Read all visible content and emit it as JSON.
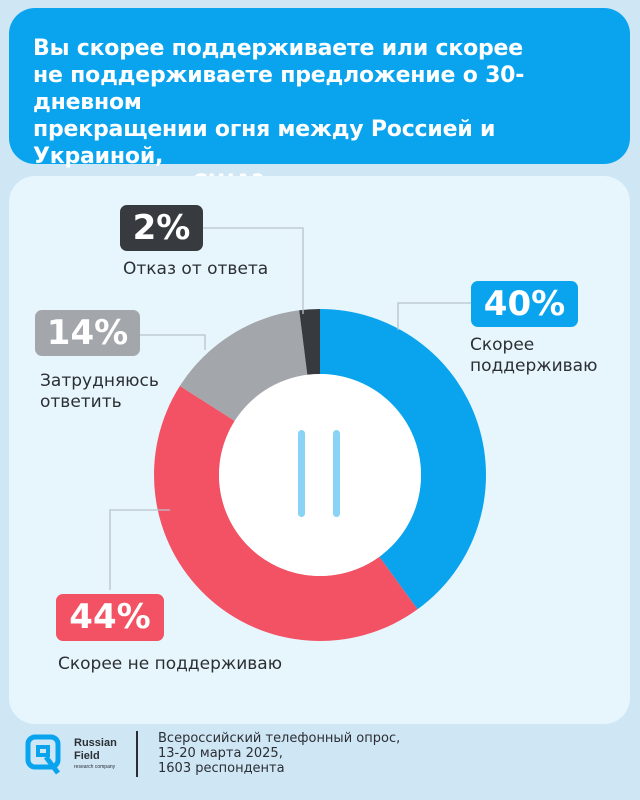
{
  "header": {
    "title_lines": [
      "Вы скорее поддерживаете или скорее",
      "не поддерживаете предложение о 30-дневном",
      "прекращении огня между Россией и Украиной,",
      "выдвинутое США?"
    ]
  },
  "chart_data": {
    "type": "pie",
    "slices": [
      {
        "label": "Скорее поддерживаю",
        "value": 40,
        "value_label": "40%",
        "color": "#0aa4ee"
      },
      {
        "label": "Скорее не поддерживаю",
        "value": 44,
        "value_label": "44%",
        "color": "#f25263"
      },
      {
        "label": "Затрудняюсь ответить",
        "value": 14,
        "value_label": "14%",
        "color": "#a3a6ab"
      },
      {
        "label": "Отказ от ответа",
        "value": 2,
        "value_label": "2%",
        "color": "#373b40"
      }
    ]
  },
  "labels": {
    "support_lines": [
      "Скорее",
      "поддерживаю"
    ],
    "not_support": "Скорее не поддерживаю",
    "unsure_lines": [
      "Затрудняюсь",
      "ответить"
    ],
    "refused": "Отказ от ответа"
  },
  "footer": {
    "logo_lines": [
      "Russian",
      "Field"
    ],
    "logo_sub": "research company",
    "survey_lines": [
      "Всероссийский телефонный опрос,",
      "13-20 марта 2025,",
      "1603 респондента"
    ]
  },
  "colors": {
    "header_bg": "#0aa4ee",
    "card_bg": "#e7f5fc",
    "page_bg": "#cfe6f5",
    "text": "#2b2f34"
  }
}
